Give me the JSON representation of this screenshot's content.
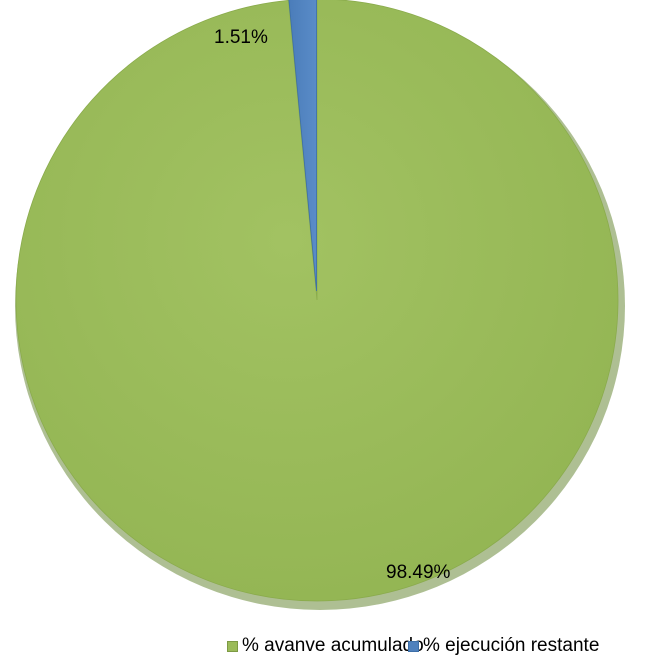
{
  "chart_data": {
    "type": "pie",
    "categories": [
      "% avanve acumulado",
      "% ejecución restante"
    ],
    "values": [
      98.49,
      1.51
    ],
    "data_labels": [
      "98.49%",
      "1.51%"
    ],
    "colors": [
      "#9bbb59",
      "#4f81bd"
    ],
    "legend_position": "bottom",
    "style": "3d-shadow"
  }
}
